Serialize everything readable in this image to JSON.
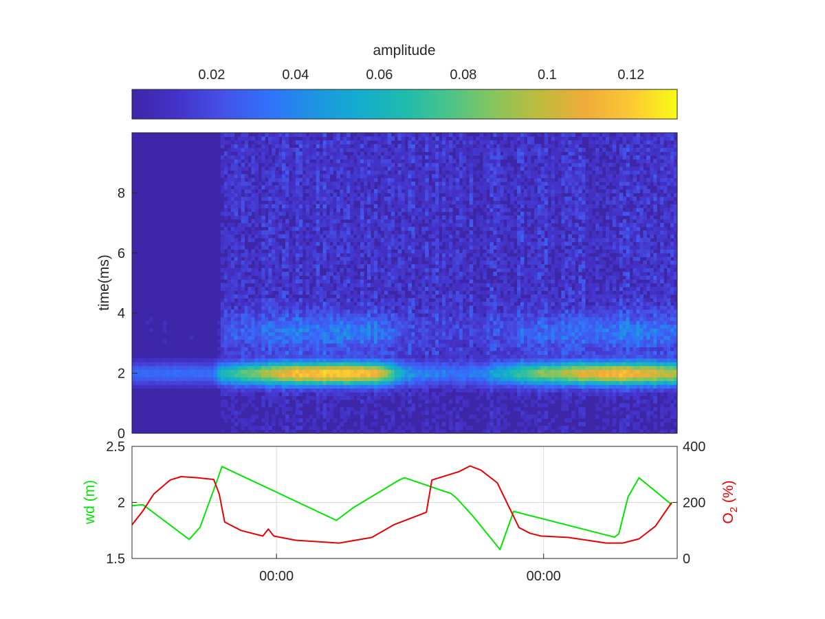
{
  "colors": {
    "axis": "#262626",
    "grid": "#dcdcdc",
    "wd_series": "#00e600",
    "o2_series": "#e60000",
    "colormap": [
      "#3e26a8",
      "#4433c9",
      "#4551e8",
      "#3171fb",
      "#1e93e2",
      "#13adcf",
      "#1fbbad",
      "#4bc58a",
      "#89c55b",
      "#c0bb3c",
      "#f0ac3a",
      "#fcc934",
      "#f9fb15"
    ]
  },
  "chart_data": [
    {
      "type": "heatmap",
      "title": "",
      "colorbar": {
        "label": "amplitude",
        "range": [
          0.001,
          0.131
        ],
        "ticks": [
          0.02,
          0.04,
          0.06,
          0.08,
          0.1,
          0.12
        ],
        "tick_labels": [
          "0.02",
          "0.04",
          "0.06",
          "0.08",
          "0.1",
          "0.12"
        ],
        "location": "top"
      },
      "ylabel": "time(ms)",
      "ylim": [
        0,
        10
      ],
      "yticks": [
        0,
        2,
        4,
        6,
        8
      ],
      "ytick_labels": [
        "0",
        "2",
        "4",
        "6",
        "8"
      ],
      "xlabel": "",
      "band_center_ms": 2.0,
      "x_fraction": [
        0.0,
        0.05,
        0.1,
        0.15,
        0.16,
        0.2,
        0.3,
        0.4,
        0.45,
        0.5,
        0.55,
        0.6,
        0.65,
        0.7,
        0.75,
        0.8,
        0.85,
        0.9,
        0.95,
        1.0
      ],
      "band_peak_amplitude": [
        0.028,
        0.03,
        0.03,
        0.03,
        0.055,
        0.07,
        0.11,
        0.115,
        0.105,
        0.04,
        0.03,
        0.028,
        0.035,
        0.06,
        0.08,
        0.09,
        0.105,
        0.11,
        0.1,
        0.09
      ]
    },
    {
      "type": "line",
      "xlabel": "",
      "xticks_fraction": [
        0.265,
        0.755
      ],
      "xtick_labels": [
        "00:00",
        "00:00"
      ],
      "grid": true,
      "y_left": {
        "label": "wd (m)",
        "range": [
          1.5,
          2.5
        ],
        "ticks": [
          1.5,
          2,
          2.5
        ],
        "tick_labels": [
          "1.5",
          "2",
          "2.5"
        ]
      },
      "y_right": {
        "label_main": "O",
        "label_sub": "2",
        "label_unit": " (%)",
        "range": [
          0,
          400
        ],
        "ticks": [
          0,
          200,
          400
        ],
        "tick_labels": [
          "0",
          "200",
          "400"
        ]
      },
      "series": [
        {
          "axis": "left",
          "x": [
            0.0,
            0.02,
            0.105,
            0.125,
            0.155,
            0.165,
            0.375,
            0.405,
            0.49,
            0.5,
            0.56,
            0.585,
            0.595,
            0.625,
            0.675,
            0.7,
            0.885,
            0.893,
            0.91,
            0.93,
            0.99
          ],
          "y": [
            1.97,
            1.98,
            1.67,
            1.78,
            2.18,
            2.32,
            1.84,
            1.95,
            2.2,
            2.22,
            2.12,
            2.08,
            2.04,
            1.88,
            1.58,
            1.92,
            1.69,
            1.72,
            2.05,
            2.22,
            1.98
          ]
        },
        {
          "axis": "right",
          "x": [
            0.0,
            0.02,
            0.04,
            0.07,
            0.09,
            0.12,
            0.15,
            0.16,
            0.17,
            0.2,
            0.24,
            0.25,
            0.26,
            0.3,
            0.38,
            0.44,
            0.48,
            0.54,
            0.55,
            0.6,
            0.62,
            0.64,
            0.67,
            0.7,
            0.71,
            0.73,
            0.75,
            0.8,
            0.87,
            0.9,
            0.93,
            0.96,
            0.99
          ],
          "y": [
            120,
            170,
            230,
            280,
            292,
            288,
            282,
            230,
            130,
            100,
            80,
            105,
            80,
            65,
            55,
            75,
            120,
            165,
            280,
            310,
            330,
            315,
            270,
            150,
            110,
            90,
            80,
            75,
            55,
            55,
            70,
            115,
            200
          ]
        }
      ]
    }
  ]
}
